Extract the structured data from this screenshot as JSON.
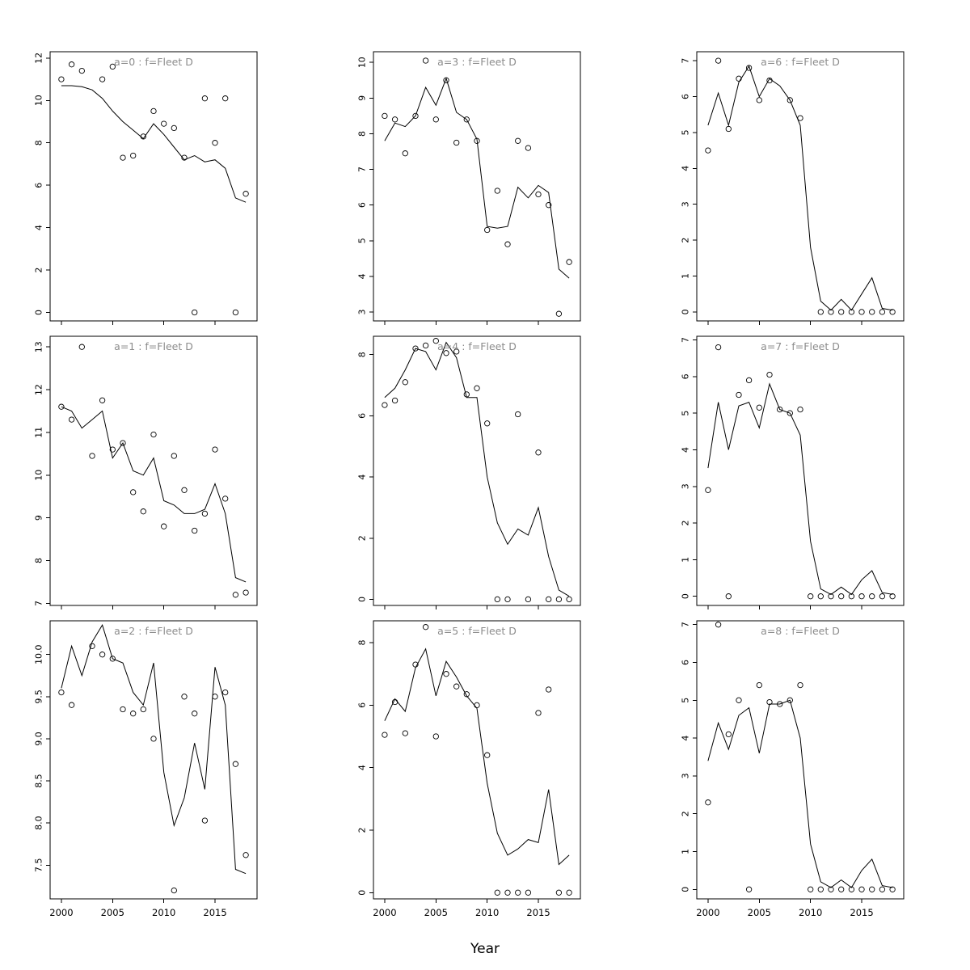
{
  "chart_data": {
    "type": "line-scatter-small-multiples",
    "grid": "3x3",
    "title_color": "#8c8c8c",
    "line_color": "#000000",
    "point_style": "open-circle",
    "x": {
      "label": "Year",
      "ticks": [
        2000,
        2005,
        2010,
        2015
      ],
      "range": [
        1998.9,
        2019.1
      ]
    },
    "years": [
      2000,
      2001,
      2002,
      2003,
      2004,
      2005,
      2006,
      2007,
      2008,
      2009,
      2010,
      2011,
      2012,
      2013,
      2014,
      2015,
      2016,
      2017,
      2018
    ],
    "panels": [
      {
        "id": "a0",
        "title": "a=0  :  f=Fleet D",
        "ylim": [
          -0.4,
          12.3
        ],
        "yticks": [
          0,
          2,
          4,
          6,
          8,
          10,
          12
        ],
        "ydecimals": 0,
        "line": [
          10.7,
          10.7,
          10.65,
          10.5,
          10.1,
          9.5,
          9.0,
          8.6,
          8.2,
          8.9,
          8.4,
          7.8,
          7.2,
          7.4,
          7.1,
          7.2,
          6.8,
          5.4,
          5.2
        ],
        "points": [
          [
            2000,
            11.0
          ],
          [
            2001,
            11.7
          ],
          [
            2002,
            11.4
          ],
          [
            2004,
            11.0
          ],
          [
            2005,
            11.6
          ],
          [
            2006,
            7.3
          ],
          [
            2007,
            7.4
          ],
          [
            2008,
            8.3
          ],
          [
            2009,
            9.5
          ],
          [
            2010,
            8.9
          ],
          [
            2011,
            8.7
          ],
          [
            2012,
            7.3
          ],
          [
            2013,
            0
          ],
          [
            2014,
            10.1
          ],
          [
            2015,
            8.0
          ],
          [
            2016,
            10.1
          ],
          [
            2017,
            0
          ],
          [
            2018,
            5.6
          ]
        ]
      },
      {
        "id": "a3",
        "title": "a=3  :  f=Fleet D",
        "ylim": [
          2.75,
          10.3
        ],
        "yticks": [
          3,
          4,
          5,
          6,
          7,
          8,
          9,
          10
        ],
        "ydecimals": 0,
        "line": [
          7.8,
          8.3,
          8.2,
          8.5,
          9.3,
          8.8,
          9.55,
          8.6,
          8.4,
          7.85,
          5.4,
          5.35,
          5.4,
          6.5,
          6.2,
          6.55,
          6.35,
          4.2,
          3.95
        ],
        "points": [
          [
            2000,
            8.5
          ],
          [
            2001,
            8.4
          ],
          [
            2002,
            7.45
          ],
          [
            2003,
            8.5
          ],
          [
            2004,
            10.05
          ],
          [
            2005,
            8.4
          ],
          [
            2006,
            9.5
          ],
          [
            2007,
            7.75
          ],
          [
            2008,
            8.4
          ],
          [
            2009,
            7.8
          ],
          [
            2010,
            5.3
          ],
          [
            2011,
            6.4
          ],
          [
            2012,
            4.9
          ],
          [
            2013,
            7.8
          ],
          [
            2014,
            7.6
          ],
          [
            2015,
            6.3
          ],
          [
            2016,
            6.0
          ],
          [
            2017,
            2.95
          ],
          [
            2018,
            4.4
          ]
        ]
      },
      {
        "id": "a6",
        "title": "a=6  :  f=Fleet D",
        "ylim": [
          -0.25,
          7.25
        ],
        "yticks": [
          0,
          1,
          2,
          3,
          4,
          5,
          6,
          7
        ],
        "ydecimals": 0,
        "line": [
          5.2,
          6.1,
          5.2,
          6.4,
          6.85,
          6.0,
          6.5,
          6.3,
          5.9,
          5.2,
          1.8,
          0.3,
          0.05,
          0.35,
          0.05,
          0.5,
          0.95,
          0.1,
          0.05
        ],
        "points": [
          [
            2000,
            4.5
          ],
          [
            2001,
            7.0
          ],
          [
            2002,
            5.1
          ],
          [
            2003,
            6.5
          ],
          [
            2004,
            6.8
          ],
          [
            2005,
            5.9
          ],
          [
            2006,
            6.45
          ],
          [
            2008,
            5.9
          ],
          [
            2009,
            5.4
          ],
          [
            2011,
            0
          ],
          [
            2012,
            0
          ],
          [
            2013,
            0
          ],
          [
            2014,
            0
          ],
          [
            2015,
            0
          ],
          [
            2016,
            0
          ],
          [
            2017,
            0
          ],
          [
            2018,
            0
          ]
        ]
      },
      {
        "id": "a1",
        "title": "a=1  :  f=Fleet D",
        "ylim": [
          6.95,
          13.25
        ],
        "yticks": [
          7,
          8,
          9,
          10,
          11,
          12,
          13
        ],
        "ydecimals": 0,
        "line": [
          11.6,
          11.5,
          11.1,
          11.3,
          11.5,
          10.4,
          10.75,
          10.1,
          10.0,
          10.4,
          9.4,
          9.3,
          9.1,
          9.1,
          9.2,
          9.8,
          9.1,
          7.6,
          7.5
        ],
        "points": [
          [
            2000,
            11.6
          ],
          [
            2001,
            11.3
          ],
          [
            2002,
            13.0
          ],
          [
            2003,
            10.45
          ],
          [
            2004,
            11.75
          ],
          [
            2005,
            10.6
          ],
          [
            2006,
            10.75
          ],
          [
            2007,
            9.6
          ],
          [
            2008,
            9.15
          ],
          [
            2009,
            10.95
          ],
          [
            2010,
            8.8
          ],
          [
            2011,
            10.45
          ],
          [
            2012,
            9.65
          ],
          [
            2013,
            8.7
          ],
          [
            2014,
            9.1
          ],
          [
            2015,
            10.6
          ],
          [
            2016,
            9.45
          ],
          [
            2017,
            7.2
          ],
          [
            2018,
            7.25
          ]
        ]
      },
      {
        "id": "a4",
        "title": "a=4  :  f=Fleet D",
        "ylim": [
          -0.2,
          8.6
        ],
        "yticks": [
          0,
          2,
          4,
          6,
          8
        ],
        "ydecimals": 0,
        "line": [
          6.6,
          6.9,
          7.5,
          8.2,
          8.1,
          7.5,
          8.4,
          7.9,
          6.6,
          6.6,
          4.0,
          2.5,
          1.8,
          2.3,
          2.1,
          3.0,
          1.4,
          0.3,
          0.1
        ],
        "points": [
          [
            2000,
            6.35
          ],
          [
            2001,
            6.5
          ],
          [
            2002,
            7.1
          ],
          [
            2003,
            8.2
          ],
          [
            2004,
            8.3
          ],
          [
            2005,
            8.45
          ],
          [
            2006,
            8.05
          ],
          [
            2007,
            8.1
          ],
          [
            2008,
            6.7
          ],
          [
            2009,
            6.9
          ],
          [
            2010,
            5.75
          ],
          [
            2011,
            0
          ],
          [
            2012,
            0
          ],
          [
            2013,
            6.05
          ],
          [
            2014,
            0
          ],
          [
            2015,
            4.8
          ],
          [
            2016,
            0
          ],
          [
            2017,
            0
          ],
          [
            2018,
            0
          ]
        ]
      },
      {
        "id": "a7",
        "title": "a=7  :  f=Fleet D",
        "ylim": [
          -0.25,
          7.1
        ],
        "yticks": [
          0,
          1,
          2,
          3,
          4,
          5,
          6,
          7
        ],
        "ydecimals": 0,
        "line": [
          3.5,
          5.3,
          4.0,
          5.2,
          5.3,
          4.6,
          5.8,
          5.1,
          5.0,
          4.4,
          1.5,
          0.2,
          0.05,
          0.25,
          0.05,
          0.45,
          0.7,
          0.1,
          0.05
        ],
        "points": [
          [
            2000,
            2.9
          ],
          [
            2001,
            6.8
          ],
          [
            2002,
            0
          ],
          [
            2003,
            5.5
          ],
          [
            2004,
            5.9
          ],
          [
            2005,
            5.15
          ],
          [
            2006,
            6.05
          ],
          [
            2007,
            5.1
          ],
          [
            2008,
            5.0
          ],
          [
            2009,
            5.1
          ],
          [
            2010,
            0
          ],
          [
            2011,
            0
          ],
          [
            2012,
            0
          ],
          [
            2013,
            0
          ],
          [
            2014,
            0
          ],
          [
            2015,
            0
          ],
          [
            2016,
            0
          ],
          [
            2017,
            0
          ],
          [
            2018,
            0
          ]
        ]
      },
      {
        "id": "a2",
        "title": "a=2  :  f=Fleet D",
        "ylim": [
          7.1,
          10.4
        ],
        "yticks": [
          7.5,
          8.0,
          8.5,
          9.0,
          9.5,
          10.0
        ],
        "ydecimals": 1,
        "line": [
          9.6,
          10.1,
          9.75,
          10.15,
          10.35,
          9.95,
          9.9,
          9.55,
          9.4,
          9.9,
          8.6,
          7.97,
          8.3,
          8.95,
          8.4,
          9.85,
          9.4,
          7.45,
          7.4
        ],
        "points": [
          [
            2000,
            9.55
          ],
          [
            2001,
            9.4
          ],
          [
            2003,
            10.1
          ],
          [
            2004,
            10.0
          ],
          [
            2005,
            9.95
          ],
          [
            2006,
            9.35
          ],
          [
            2007,
            9.3
          ],
          [
            2008,
            9.35
          ],
          [
            2009,
            9.0
          ],
          [
            2011,
            7.2
          ],
          [
            2012,
            9.5
          ],
          [
            2013,
            9.3
          ],
          [
            2014,
            8.03
          ],
          [
            2015,
            9.5
          ],
          [
            2016,
            9.55
          ],
          [
            2017,
            8.7
          ],
          [
            2018,
            7.62
          ]
        ]
      },
      {
        "id": "a5",
        "title": "a=5  :  f=Fleet D",
        "ylim": [
          -0.2,
          8.7
        ],
        "yticks": [
          0,
          2,
          4,
          6,
          8
        ],
        "ydecimals": 0,
        "line": [
          5.5,
          6.2,
          5.8,
          7.2,
          7.8,
          6.3,
          7.4,
          6.9,
          6.3,
          5.9,
          3.5,
          1.9,
          1.2,
          1.4,
          1.7,
          1.6,
          3.3,
          0.9,
          1.2
        ],
        "points": [
          [
            2000,
            5.05
          ],
          [
            2001,
            6.1
          ],
          [
            2002,
            5.1
          ],
          [
            2003,
            7.3
          ],
          [
            2004,
            8.5
          ],
          [
            2005,
            5.0
          ],
          [
            2006,
            7.0
          ],
          [
            2007,
            6.6
          ],
          [
            2008,
            6.35
          ],
          [
            2009,
            6.0
          ],
          [
            2010,
            4.4
          ],
          [
            2011,
            0
          ],
          [
            2012,
            0
          ],
          [
            2013,
            0
          ],
          [
            2014,
            0
          ],
          [
            2015,
            5.75
          ],
          [
            2016,
            6.5
          ],
          [
            2017,
            0
          ],
          [
            2018,
            0
          ]
        ]
      },
      {
        "id": "a8",
        "title": "a=8  :  f=Fleet D",
        "ylim": [
          -0.25,
          7.1
        ],
        "yticks": [
          0,
          1,
          2,
          3,
          4,
          5,
          6,
          7
        ],
        "ydecimals": 0,
        "line": [
          3.4,
          4.4,
          3.7,
          4.6,
          4.8,
          3.6,
          4.9,
          4.9,
          5.0,
          4.0,
          1.2,
          0.2,
          0.05,
          0.25,
          0.05,
          0.5,
          0.8,
          0.1,
          0.05
        ],
        "points": [
          [
            2000,
            2.3
          ],
          [
            2001,
            7.0
          ],
          [
            2002,
            4.1
          ],
          [
            2003,
            5.0
          ],
          [
            2004,
            0
          ],
          [
            2005,
            5.4
          ],
          [
            2006,
            4.95
          ],
          [
            2007,
            4.9
          ],
          [
            2008,
            5.0
          ],
          [
            2009,
            5.4
          ],
          [
            2010,
            0
          ],
          [
            2011,
            0
          ],
          [
            2012,
            0
          ],
          [
            2013,
            0
          ],
          [
            2014,
            0
          ],
          [
            2015,
            0
          ],
          [
            2016,
            0
          ],
          [
            2017,
            0
          ],
          [
            2018,
            0
          ]
        ]
      }
    ]
  }
}
